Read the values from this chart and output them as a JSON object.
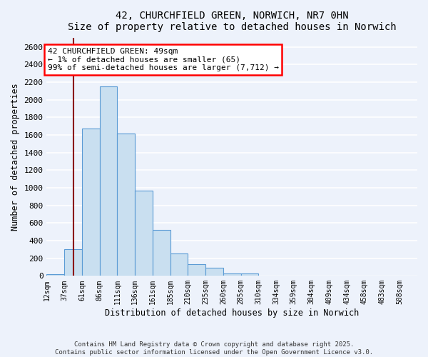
{
  "title": "42, CHURCHFIELD GREEN, NORWICH, NR7 0HN",
  "subtitle": "Size of property relative to detached houses in Norwich",
  "xlabel": "Distribution of detached houses by size in Norwich",
  "ylabel": "Number of detached properties",
  "bar_labels": [
    "12sqm",
    "37sqm",
    "61sqm",
    "86sqm",
    "111sqm",
    "136sqm",
    "161sqm",
    "185sqm",
    "210sqm",
    "235sqm",
    "260sqm",
    "285sqm",
    "310sqm",
    "334sqm",
    "359sqm",
    "384sqm",
    "409sqm",
    "434sqm",
    "458sqm",
    "483sqm",
    "508sqm"
  ],
  "bar_values": [
    15,
    300,
    1670,
    2150,
    1620,
    970,
    520,
    255,
    130,
    95,
    25,
    30,
    5,
    2,
    1,
    0,
    0,
    0,
    0,
    0,
    0
  ],
  "bar_color": "#c9dff0",
  "bar_edge_color": "#5b9bd5",
  "background_color": "#edf2fb",
  "grid_color": "#ffffff",
  "ylim": [
    0,
    2700
  ],
  "yticks": [
    0,
    200,
    400,
    600,
    800,
    1000,
    1200,
    1400,
    1600,
    1800,
    2000,
    2200,
    2400,
    2600
  ],
  "property_line_x": 1,
  "annotation_title": "42 CHURCHFIELD GREEN: 49sqm",
  "annotation_line1": "← 1% of detached houses are smaller (65)",
  "annotation_line2": "99% of semi-detached houses are larger (7,712) →",
  "footer_line1": "Contains HM Land Registry data © Crown copyright and database right 2025.",
  "footer_line2": "Contains public sector information licensed under the Open Government Licence v3.0.",
  "n_bins": 21
}
